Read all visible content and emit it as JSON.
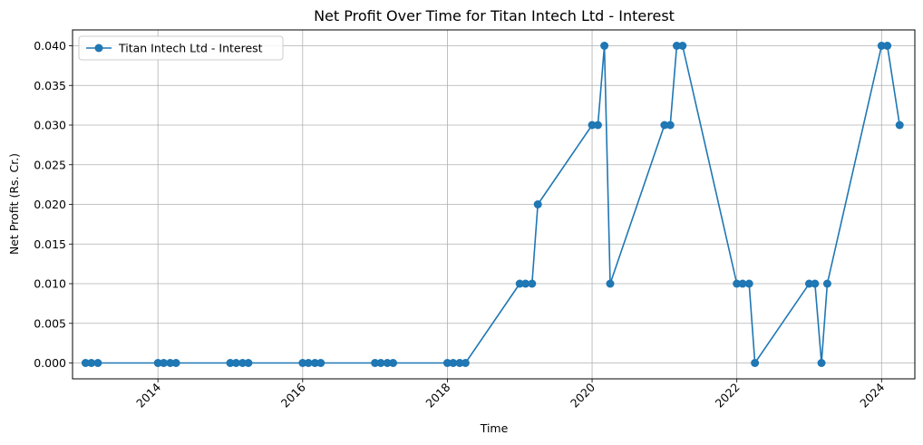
{
  "chart_data": {
    "type": "line",
    "title": "Net Profit Over Time for Titan Intech Ltd - Interest",
    "xlabel": "Time",
    "ylabel": "Net Profit (Rs. Cr.)",
    "xlim": [
      2012.82,
      2024.46
    ],
    "ylim": [
      -0.002,
      0.042
    ],
    "x_ticks": [
      2014,
      2016,
      2018,
      2020,
      2022,
      2024
    ],
    "x_tick_labels": [
      "2014",
      "2016",
      "2018",
      "2020",
      "2022",
      "2024"
    ],
    "y_ticks": [
      0,
      0.005,
      0.01,
      0.015,
      0.02,
      0.025,
      0.03,
      0.035,
      0.04
    ],
    "y_tick_labels": [
      "0.000",
      "0.005",
      "0.010",
      "0.015",
      "0.020",
      "0.025",
      "0.030",
      "0.035",
      "0.040"
    ],
    "grid": true,
    "legend_position": "top-left",
    "series": [
      {
        "name": "Titan Intech Ltd - Interest",
        "color": "#1f77b4",
        "marker": "circle",
        "x": [
          2013.0,
          2013.08,
          2013.17,
          2014.0,
          2014.08,
          2014.17,
          2014.25,
          2015.0,
          2015.08,
          2015.17,
          2015.25,
          2016.0,
          2016.08,
          2016.17,
          2016.25,
          2017.0,
          2017.08,
          2017.17,
          2017.25,
          2018.0,
          2018.08,
          2018.17,
          2018.25,
          2019.0,
          2019.08,
          2019.17,
          2019.25,
          2020.0,
          2020.08,
          2020.17,
          2020.25,
          2021.0,
          2021.08,
          2021.17,
          2021.25,
          2022.0,
          2022.08,
          2022.17,
          2022.25,
          2023.0,
          2023.08,
          2023.17,
          2023.25,
          2024.0,
          2024.08,
          2024.25
        ],
        "y": [
          0.0,
          0.0,
          0.0,
          0.0,
          0.0,
          0.0,
          0.0,
          0.0,
          0.0,
          0.0,
          0.0,
          0.0,
          0.0,
          0.0,
          0.0,
          0.0,
          0.0,
          0.0,
          0.0,
          0.0,
          0.0,
          0.0,
          0.0,
          0.01,
          0.01,
          0.01,
          0.02,
          0.03,
          0.03,
          0.04,
          0.01,
          0.03,
          0.03,
          0.04,
          0.04,
          0.01,
          0.01,
          0.01,
          0.0,
          0.01,
          0.01,
          0.0,
          0.01,
          0.04,
          0.04,
          0.03
        ]
      }
    ]
  }
}
